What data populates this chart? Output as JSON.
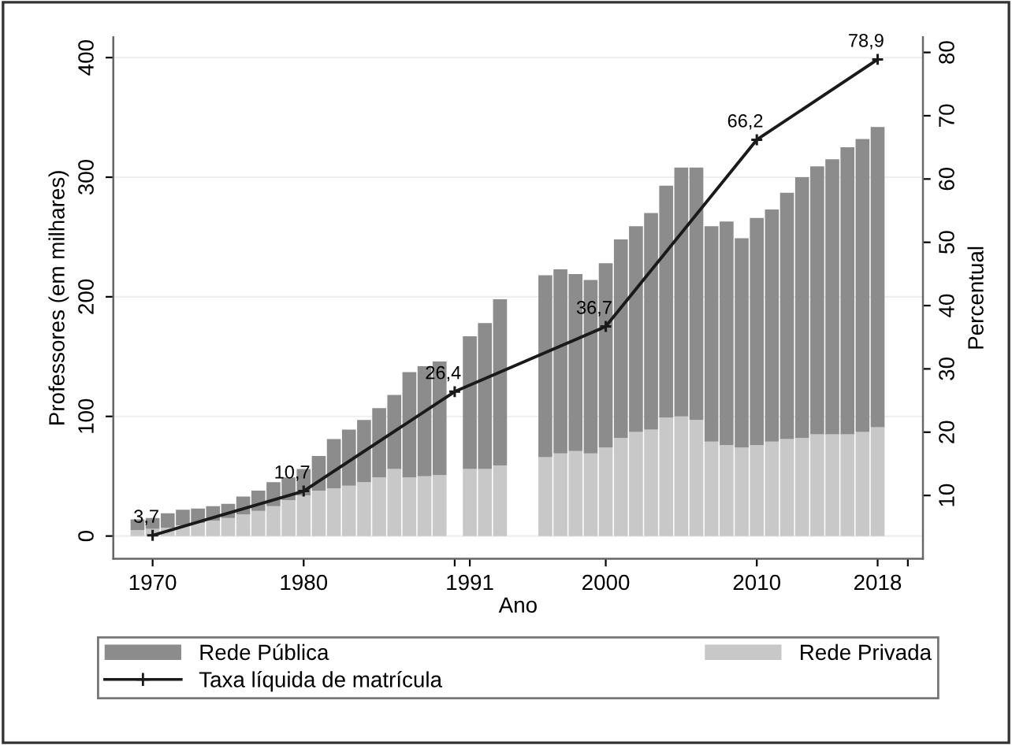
{
  "chart_data": {
    "type": "bar",
    "stacked": true,
    "xlabel": "Ano",
    "ylabel": "Professores (em milhares)",
    "y2label": "Percentual",
    "x": [
      1969,
      1970,
      1971,
      1972,
      1973,
      1974,
      1975,
      1976,
      1977,
      1978,
      1979,
      1980,
      1981,
      1982,
      1983,
      1984,
      1985,
      1986,
      1987,
      1988,
      1989,
      1991,
      1992,
      1993,
      1996,
      1997,
      1998,
      1999,
      2000,
      2001,
      2002,
      2003,
      2004,
      2005,
      2006,
      2007,
      2008,
      2009,
      2010,
      2011,
      2012,
      2013,
      2014,
      2015,
      2016,
      2017,
      2018
    ],
    "series": [
      {
        "name": "Rede Privada",
        "color": "#c8c8c8",
        "values": [
          5,
          6,
          7,
          9,
          11,
          13,
          15,
          18,
          21,
          25,
          30,
          34,
          38,
          40,
          42,
          45,
          49,
          56,
          49,
          50,
          51,
          56,
          56,
          59,
          66,
          69,
          71,
          69,
          74,
          82,
          87,
          89,
          99,
          100,
          97,
          79,
          76,
          74,
          76,
          79,
          81,
          82,
          85,
          85,
          85,
          87,
          91
        ]
      },
      {
        "name": "Rede Pública",
        "color": "#8c8c8c",
        "values": [
          9,
          9,
          12,
          13,
          12,
          12,
          12,
          15,
          17,
          20,
          19,
          22,
          29,
          41,
          47,
          52,
          58,
          62,
          88,
          92,
          95,
          111,
          122,
          139,
          152,
          154,
          148,
          145,
          154,
          166,
          172,
          181,
          194,
          208,
          211,
          180,
          187,
          175,
          190,
          194,
          206,
          218,
          224,
          230,
          240,
          245,
          251
        ]
      },
      {
        "name": "Taxa líquida de matrícula",
        "type": "line",
        "axis": "y2",
        "color": "#1a1a1a",
        "marker": "cross",
        "x": [
          1970,
          1980,
          1990,
          2000,
          2010,
          2018
        ],
        "values": [
          3.7,
          10.7,
          26.4,
          36.7,
          66.2,
          78.9
        ],
        "value_labels": [
          "3,7",
          "10,7",
          "26,4",
          "36,7",
          "66,2",
          "78,9"
        ]
      }
    ],
    "xlim": [
      1967.4,
      2021
    ],
    "xticks": [
      1970,
      1980,
      {
        "value": 1990,
        "label": null
      },
      1991,
      2000,
      2010,
      2018,
      {
        "value": 2020,
        "label": null
      }
    ],
    "ylim": [
      -19,
      417
    ],
    "yticks": [
      0,
      100,
      200,
      300,
      400
    ],
    "y2lim": [
      0,
      82.4
    ],
    "y2ticks": [
      10,
      20,
      30,
      40,
      50,
      60,
      70,
      80
    ],
    "grid": "y",
    "legend": "bottom"
  }
}
